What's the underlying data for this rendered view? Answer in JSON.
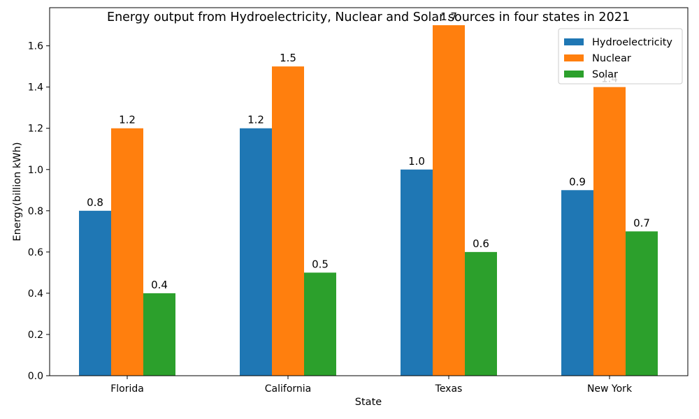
{
  "chart_data": {
    "type": "bar",
    "title": "Energy output from Hydroelectricity, Nuclear and Solar sources in four states in 2021",
    "xlabel": "State",
    "ylabel": "Energy(billion kWh)",
    "categories": [
      "Florida",
      "California",
      "Texas",
      "New York"
    ],
    "series": [
      {
        "name": "Hydroelectricity",
        "color": "#1f77b4",
        "values": [
          0.8,
          1.2,
          1.0,
          0.9
        ]
      },
      {
        "name": "Nuclear",
        "color": "#ff7f0e",
        "values": [
          1.2,
          1.5,
          1.7,
          1.4
        ]
      },
      {
        "name": "Solar",
        "color": "#2ca02c",
        "values": [
          0.4,
          0.5,
          0.6,
          0.7
        ]
      }
    ],
    "ylim": [
      0,
      1.785
    ],
    "yticks": [
      "0.0",
      "0.2",
      "0.4",
      "0.6",
      "0.8",
      "1.0",
      "1.2",
      "1.4",
      "1.6"
    ],
    "grid": false,
    "legend_position": "top-right"
  }
}
